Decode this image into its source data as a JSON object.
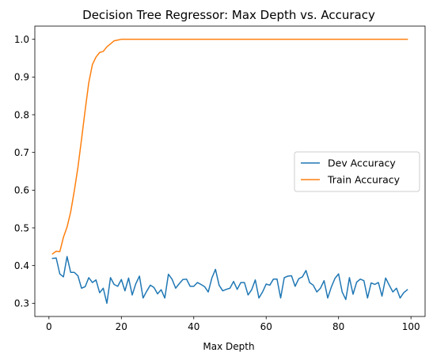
{
  "chart_data": {
    "type": "line",
    "title": "Decision Tree Regressor: Max Depth vs. Accuracy",
    "xlabel": "Max Depth",
    "ylabel": "",
    "xlim": [
      -3.9,
      103.9
    ],
    "ylim": [
      0.265,
      1.035
    ],
    "xticks": [
      0,
      20,
      40,
      60,
      80,
      100
    ],
    "xtick_labels": [
      "0",
      "20",
      "40",
      "60",
      "80",
      "100"
    ],
    "yticks": [
      0.3,
      0.4,
      0.5,
      0.6,
      0.7,
      0.8,
      0.9,
      1.0
    ],
    "ytick_labels": [
      "0.3",
      "0.4",
      "0.5",
      "0.6",
      "0.7",
      "0.8",
      "0.9",
      "1.0"
    ],
    "grid": false,
    "legend_position": "center-right",
    "series": [
      {
        "name": "Dev Accuracy",
        "color": "#1f77b4",
        "x": [
          1,
          2,
          3,
          4,
          5,
          6,
          7,
          8,
          9,
          10,
          11,
          12,
          13,
          14,
          15,
          16,
          17,
          18,
          19,
          20,
          21,
          22,
          23,
          24,
          25,
          26,
          27,
          28,
          29,
          30,
          31,
          32,
          33,
          34,
          35,
          36,
          37,
          38,
          39,
          40,
          41,
          42,
          43,
          44,
          45,
          46,
          47,
          48,
          49,
          50,
          51,
          52,
          53,
          54,
          55,
          56,
          57,
          58,
          59,
          60,
          61,
          62,
          63,
          64,
          65,
          66,
          67,
          68,
          69,
          70,
          71,
          72,
          73,
          74,
          75,
          76,
          77,
          78,
          79,
          80,
          81,
          82,
          83,
          84,
          85,
          86,
          87,
          88,
          89,
          90,
          91,
          92,
          93,
          94,
          95,
          96,
          97,
          98,
          99
        ],
        "values": [
          0.419,
          0.42,
          0.378,
          0.37,
          0.424,
          0.382,
          0.382,
          0.373,
          0.34,
          0.344,
          0.368,
          0.355,
          0.362,
          0.328,
          0.34,
          0.3,
          0.368,
          0.35,
          0.345,
          0.363,
          0.333,
          0.367,
          0.322,
          0.352,
          0.372,
          0.314,
          0.332,
          0.348,
          0.342,
          0.325,
          0.336,
          0.314,
          0.377,
          0.364,
          0.34,
          0.352,
          0.363,
          0.364,
          0.345,
          0.345,
          0.355,
          0.35,
          0.344,
          0.33,
          0.367,
          0.39,
          0.348,
          0.333,
          0.337,
          0.34,
          0.358,
          0.337,
          0.355,
          0.355,
          0.322,
          0.336,
          0.362,
          0.314,
          0.33,
          0.351,
          0.348,
          0.364,
          0.364,
          0.314,
          0.368,
          0.372,
          0.373,
          0.345,
          0.365,
          0.37,
          0.387,
          0.355,
          0.348,
          0.33,
          0.34,
          0.36,
          0.314,
          0.343,
          0.366,
          0.378,
          0.33,
          0.31,
          0.368,
          0.324,
          0.356,
          0.364,
          0.36,
          0.314,
          0.354,
          0.35,
          0.355,
          0.319,
          0.367,
          0.348,
          0.33,
          0.34,
          0.314,
          0.328,
          0.336
        ]
      },
      {
        "name": "Train Accuracy",
        "color": "#ff7f0e",
        "x": [
          1,
          2,
          3,
          4,
          5,
          6,
          7,
          8,
          9,
          10,
          11,
          12,
          13,
          14,
          15,
          16,
          17,
          18,
          19,
          20,
          21,
          22,
          23,
          24,
          25,
          26,
          27,
          28,
          29,
          30,
          31,
          32,
          33,
          34,
          35,
          36,
          37,
          38,
          39,
          40,
          41,
          42,
          43,
          44,
          45,
          46,
          47,
          48,
          49,
          50,
          51,
          52,
          53,
          54,
          55,
          56,
          57,
          58,
          59,
          60,
          61,
          62,
          63,
          64,
          65,
          66,
          67,
          68,
          69,
          70,
          71,
          72,
          73,
          74,
          75,
          76,
          77,
          78,
          79,
          80,
          81,
          82,
          83,
          84,
          85,
          86,
          87,
          88,
          89,
          90,
          91,
          92,
          93,
          94,
          95,
          96,
          97,
          98,
          99
        ],
        "values": [
          0.431,
          0.438,
          0.437,
          0.475,
          0.502,
          0.542,
          0.598,
          0.66,
          0.735,
          0.812,
          0.885,
          0.933,
          0.953,
          0.965,
          0.968,
          0.98,
          0.988,
          0.996,
          0.998,
          1.0,
          1.0,
          1.0,
          1.0,
          1.0,
          1.0,
          1.0,
          1.0,
          1.0,
          1.0,
          1.0,
          1.0,
          1.0,
          1.0,
          1.0,
          1.0,
          1.0,
          1.0,
          1.0,
          1.0,
          1.0,
          1.0,
          1.0,
          1.0,
          1.0,
          1.0,
          1.0,
          1.0,
          1.0,
          1.0,
          1.0,
          1.0,
          1.0,
          1.0,
          1.0,
          1.0,
          1.0,
          1.0,
          1.0,
          1.0,
          1.0,
          1.0,
          1.0,
          1.0,
          1.0,
          1.0,
          1.0,
          1.0,
          1.0,
          1.0,
          1.0,
          1.0,
          1.0,
          1.0,
          1.0,
          1.0,
          1.0,
          1.0,
          1.0,
          1.0,
          1.0,
          1.0,
          1.0,
          1.0,
          1.0,
          1.0,
          1.0,
          1.0,
          1.0,
          1.0,
          1.0,
          1.0,
          1.0,
          1.0,
          1.0,
          1.0,
          1.0,
          1.0,
          1.0,
          1.0
        ]
      }
    ]
  }
}
